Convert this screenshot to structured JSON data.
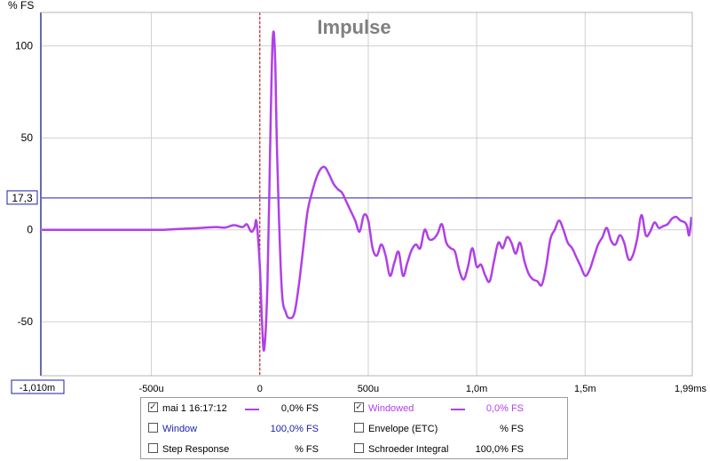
{
  "chart_data": {
    "type": "line",
    "title": "Impulse",
    "ylabel": "% FS",
    "xunit": "ms",
    "xlim": [
      -1.01,
      1.99
    ],
    "ylim": [
      -90,
      110
    ],
    "yticks": [
      100,
      50,
      0,
      -50
    ],
    "ytick_labels": [
      "100",
      "50",
      "0",
      "-50"
    ],
    "xticks": [
      -0.5,
      0,
      0.5,
      1.0,
      1.5,
      1.99
    ],
    "xtick_labels": [
      "-500u",
      "0",
      "500u",
      "1,0m",
      "1,5m",
      "1,99ms"
    ],
    "x_start_label": "-1,010m",
    "cursor_y": 17.3,
    "cursor_y_label": "17,3",
    "marker_x": 0,
    "grid": true,
    "series": [
      {
        "name": "mai 1 16:17:12",
        "color": "#b040e8",
        "x": [
          -1.01,
          -0.9,
          -0.8,
          -0.7,
          -0.6,
          -0.5,
          -0.45,
          -0.4,
          -0.35,
          -0.3,
          -0.25,
          -0.2,
          -0.16,
          -0.12,
          -0.08,
          -0.06,
          -0.04,
          -0.025,
          -0.015,
          0.0,
          0.01,
          0.02,
          0.035,
          0.05,
          0.06,
          0.07,
          0.08,
          0.1,
          0.12,
          0.14,
          0.16,
          0.18,
          0.2,
          0.22,
          0.24,
          0.26,
          0.28,
          0.3,
          0.32,
          0.34,
          0.36,
          0.38,
          0.4,
          0.42,
          0.44,
          0.46,
          0.48,
          0.5,
          0.52,
          0.54,
          0.56,
          0.58,
          0.6,
          0.62,
          0.64,
          0.66,
          0.68,
          0.7,
          0.72,
          0.74,
          0.76,
          0.78,
          0.8,
          0.82,
          0.84,
          0.86,
          0.88,
          0.9,
          0.92,
          0.94,
          0.96,
          0.98,
          1.0,
          1.02,
          1.04,
          1.06,
          1.08,
          1.1,
          1.12,
          1.14,
          1.16,
          1.18,
          1.2,
          1.22,
          1.24,
          1.26,
          1.28,
          1.3,
          1.32,
          1.34,
          1.36,
          1.38,
          1.4,
          1.42,
          1.44,
          1.46,
          1.48,
          1.5,
          1.52,
          1.54,
          1.56,
          1.58,
          1.6,
          1.62,
          1.64,
          1.66,
          1.68,
          1.7,
          1.72,
          1.74,
          1.76,
          1.78,
          1.8,
          1.82,
          1.84,
          1.86,
          1.88,
          1.9,
          1.92,
          1.94,
          1.96,
          1.97,
          1.98,
          1.99
        ],
        "y": [
          0,
          0,
          0,
          0,
          0,
          0,
          0,
          0.3,
          0.6,
          0.8,
          1.2,
          1.5,
          1.2,
          2.5,
          1.5,
          3,
          -1,
          1,
          4,
          -20,
          -50,
          -65,
          -30,
          60,
          105,
          95,
          40,
          -30,
          -45,
          -48,
          -45,
          -30,
          -10,
          10,
          20,
          28,
          33,
          34,
          30,
          25,
          22,
          20,
          15,
          10,
          5,
          -1,
          8,
          5,
          -10,
          -14,
          -8,
          -14,
          -25,
          -18,
          -12,
          -25,
          -18,
          -11,
          -8,
          -10,
          0,
          -5,
          -5,
          -2,
          3,
          -7,
          -10,
          -12,
          -22,
          -27,
          -20,
          -10,
          -20,
          -19,
          -25,
          -28,
          -17,
          -7,
          -10,
          -4,
          -7,
          -13,
          -7,
          -17,
          -24,
          -27,
          -28,
          -30,
          -20,
          -5,
          0,
          5,
          0,
          -7,
          -10,
          -15,
          -20,
          -25,
          -22,
          -15,
          -8,
          -4,
          1,
          -6,
          -8,
          -3,
          -7,
          -16,
          -14,
          -5,
          8,
          -3,
          -1,
          4,
          1,
          2,
          3,
          6,
          7,
          5,
          4,
          2,
          -3,
          7
        ]
      }
    ]
  },
  "legend": {
    "rows": [
      {
        "left": {
          "checked": true,
          "label": "mai 1 16:17:12",
          "value": "0,0% FS",
          "has_swatch": true,
          "label_color": "#000000"
        },
        "right": {
          "checked": true,
          "label": "Windowed",
          "value": "0,0% FS",
          "has_swatch": true,
          "label_color": "#b040e8"
        }
      },
      {
        "left": {
          "checked": false,
          "label": "Window",
          "value": "100,0% FS",
          "has_swatch": false,
          "label_color": "#1e1ea8"
        },
        "right": {
          "checked": false,
          "label": "Envelope (ETC)",
          "value": "% FS",
          "has_swatch": false,
          "label_color": "#000000"
        }
      },
      {
        "left": {
          "checked": false,
          "label": "Step Response",
          "value": "% FS",
          "has_swatch": false,
          "label_color": "#000000"
        },
        "right": {
          "checked": false,
          "label": "Schroeder Integral",
          "value": "100,0% FS",
          "has_swatch": false,
          "label_color": "#000000"
        }
      }
    ],
    "check_glyph": "✓"
  },
  "colors": {
    "curve": "#b040e8",
    "cursor_line": "#1e1ea8",
    "marker": "#cc0000",
    "grid": "#cfcfcf",
    "title": "#808080",
    "window_value": "#1e1ea8"
  }
}
